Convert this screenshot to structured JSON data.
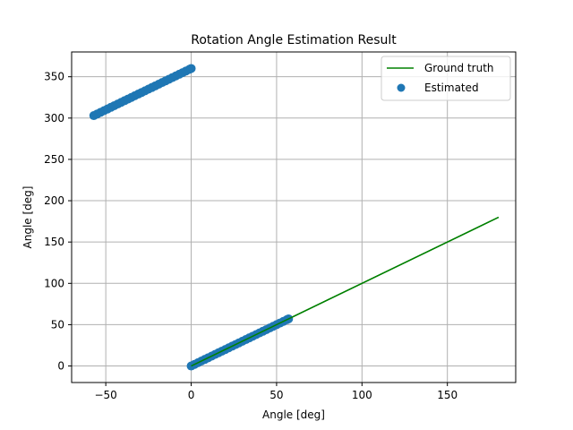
{
  "chart_data": {
    "type": "line+scatter",
    "title": "Rotation Angle Estimation Result",
    "xlabel": "Angle [deg]",
    "ylabel": "Angle [deg]",
    "xlim": [
      -70,
      190
    ],
    "ylim": [
      -20,
      380
    ],
    "xticks": [
      -50,
      0,
      50,
      100,
      150
    ],
    "xtick_labels": [
      "−50",
      "0",
      "50",
      "100",
      "150"
    ],
    "yticks": [
      0,
      50,
      100,
      150,
      200,
      250,
      300,
      350
    ],
    "ytick_labels": [
      "0",
      "50",
      "100",
      "150",
      "200",
      "250",
      "300",
      "350"
    ],
    "grid": true,
    "legend_position": "upper right",
    "colors": {
      "ground_truth": "#008000",
      "estimated": "#1f77b4",
      "grid": "#b0b0b0"
    },
    "series": [
      {
        "name": "Ground truth",
        "kind": "line",
        "x": [
          0,
          180
        ],
        "y": [
          0,
          180
        ]
      },
      {
        "name": "Estimated",
        "kind": "scatter",
        "x": [
          0,
          2,
          4,
          6,
          8,
          10,
          12,
          14,
          16,
          18,
          20,
          22,
          24,
          26,
          28,
          30,
          32,
          34,
          36,
          38,
          40,
          42,
          44,
          46,
          48,
          50,
          52,
          54,
          56,
          57,
          -57,
          -55,
          -53,
          -51,
          -49,
          -47,
          -45,
          -43,
          -41,
          -39,
          -37,
          -35,
          -33,
          -31,
          -29,
          -27,
          -25,
          -23,
          -21,
          -19,
          -17,
          -15,
          -13,
          -11,
          -9,
          -7,
          -5,
          -3,
          -1,
          0
        ],
        "y": [
          0,
          2,
          4,
          6,
          8,
          10,
          12,
          14,
          16,
          18,
          20,
          22,
          24,
          26,
          28,
          30,
          32,
          34,
          36,
          38,
          40,
          42,
          44,
          46,
          48,
          50,
          52,
          54,
          56,
          57,
          303,
          305,
          307,
          309,
          311,
          313,
          315,
          317,
          319,
          321,
          323,
          325,
          327,
          329,
          331,
          333,
          335,
          337,
          339,
          341,
          343,
          345,
          347,
          349,
          351,
          353,
          355,
          357,
          359,
          360
        ]
      }
    ]
  }
}
